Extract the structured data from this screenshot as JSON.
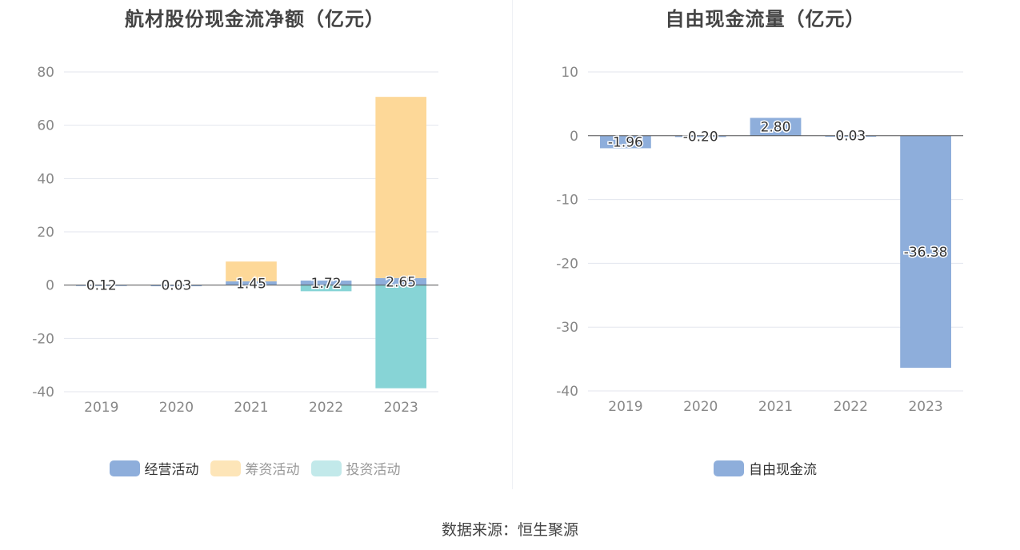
{
  "footer": {
    "source": "数据来源：恒生聚源"
  },
  "chart_data": [
    {
      "type": "bar",
      "stacked": true,
      "title": "航材股份现金流净额（亿元）",
      "categories": [
        "2019",
        "2020",
        "2021",
        "2022",
        "2023"
      ],
      "ylim": [
        -40,
        80
      ],
      "yticks": [
        -40,
        -20,
        0,
        20,
        40,
        60,
        80
      ],
      "grid": true,
      "legend_position": "bottom",
      "series": [
        {
          "name": "经营活动",
          "color": "#8eaedb",
          "values": [
            0.12,
            0.03,
            1.45,
            1.72,
            2.65
          ]
        },
        {
          "name": "筹资活动",
          "color": "#fdd898",
          "values": [
            0,
            0,
            7.4,
            0,
            68.0
          ]
        },
        {
          "name": "投资活动",
          "color": "#87d4d6",
          "values": [
            0,
            0,
            0,
            -2.3,
            -38.7
          ]
        }
      ],
      "data_labels": [
        "0.12",
        "0.03",
        "1.45",
        "1.72",
        "2.65"
      ]
    },
    {
      "type": "bar",
      "title": "自由现金流量（亿元）",
      "categories": [
        "2019",
        "2020",
        "2021",
        "2022",
        "2023"
      ],
      "ylim": [
        -40,
        10
      ],
      "yticks": [
        -40,
        -30,
        -20,
        -10,
        0,
        10
      ],
      "grid": true,
      "legend_position": "bottom",
      "series": [
        {
          "name": "自由现金流",
          "color": "#8eaedb",
          "values": [
            -1.96,
            -0.2,
            2.8,
            0.03,
            -36.38
          ]
        }
      ],
      "data_labels": [
        "-1.96",
        "-0.20",
        "2.80",
        "0.03",
        "-36.38"
      ]
    }
  ]
}
